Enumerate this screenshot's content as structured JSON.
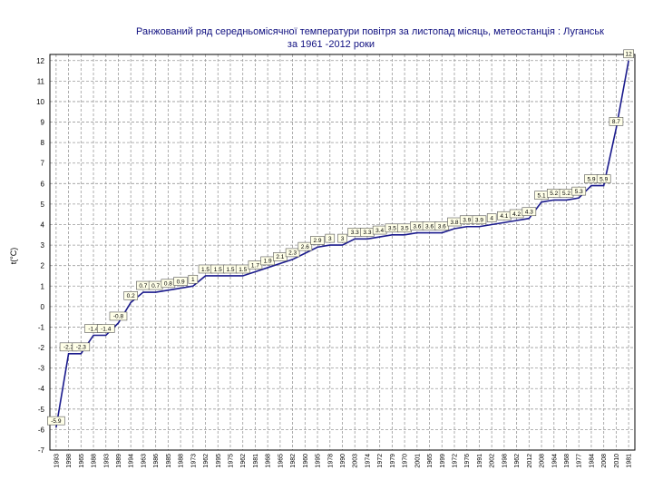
{
  "chart_data": {
    "type": "line",
    "title": "Ранжований ряд  середньомісячної температури повітря за листопад місяць,    метеостанція : Луганськ",
    "subtitle": "за 1961 -2012 роки",
    "ylabel": "t(°C)",
    "xlabel": "",
    "ylim": [
      -7,
      12.3
    ],
    "yticks": [
      12,
      11,
      10,
      9,
      8,
      7,
      6,
      5,
      4,
      3,
      2,
      1,
      0,
      -1,
      -2,
      -3,
      -4,
      -5,
      -6,
      -7
    ],
    "grid": true,
    "legend": "none",
    "categories": [
      "1993",
      "1998",
      "1965",
      "1988",
      "1993",
      "1989",
      "1994",
      "1963",
      "1986",
      "1985",
      "1988",
      "1973",
      "1962",
      "1995",
      "1975",
      "1962",
      "1981",
      "1968",
      "1965",
      "1982",
      "1960",
      "1995",
      "1978",
      "1990",
      "2003",
      "1974",
      "1972",
      "1979",
      "1970",
      "2001",
      "1965",
      "1999",
      "1972",
      "1976",
      "1991",
      "2002",
      "1998",
      "1962",
      "2012",
      "2008",
      "1964",
      "1968",
      "1977",
      "1984",
      "2008",
      "2010",
      "1981"
    ],
    "values": [
      -5.9,
      -2.3,
      -2.3,
      -1.4,
      -1.4,
      -0.8,
      0.2,
      0.7,
      0.7,
      0.8,
      0.9,
      1.0,
      1.5,
      1.5,
      1.5,
      1.5,
      1.7,
      1.9,
      2.1,
      2.3,
      2.6,
      2.9,
      3.0,
      3.0,
      3.3,
      3.3,
      3.4,
      3.5,
      3.5,
      3.6,
      3.6,
      3.6,
      3.8,
      3.9,
      3.9,
      4.0,
      4.1,
      4.2,
      4.3,
      5.1,
      5.2,
      5.2,
      5.3,
      5.9,
      5.9,
      8.7,
      12.0
    ],
    "point_labels": [
      "-5.9",
      "-2.3",
      "-2.3",
      "-1.4",
      "-1.4",
      "-0.8",
      "0.2",
      "0.7",
      "0.7",
      "0.8",
      "0.9",
      "1",
      "1.5",
      "1.5",
      "1.5",
      "1.5",
      "1.7",
      "1.9",
      "2.1",
      "2.3",
      "2.6",
      "2.9",
      "3",
      "3",
      "3.3",
      "3.3",
      "3.4",
      "3.5",
      "3.5",
      "3.6",
      "3.6",
      "3.6",
      "3.8",
      "3.9",
      "3.9",
      "4",
      "4.1",
      "4.2",
      "4.3",
      "5.1",
      "5.2",
      "5.2",
      "5.3",
      "5.9",
      "5.9",
      "8.7",
      "12"
    ],
    "colors": {
      "series": "#1a1a8c",
      "grid": "#9a9a9a",
      "title": "#101080",
      "label_fill": "#ffffe8"
    }
  }
}
